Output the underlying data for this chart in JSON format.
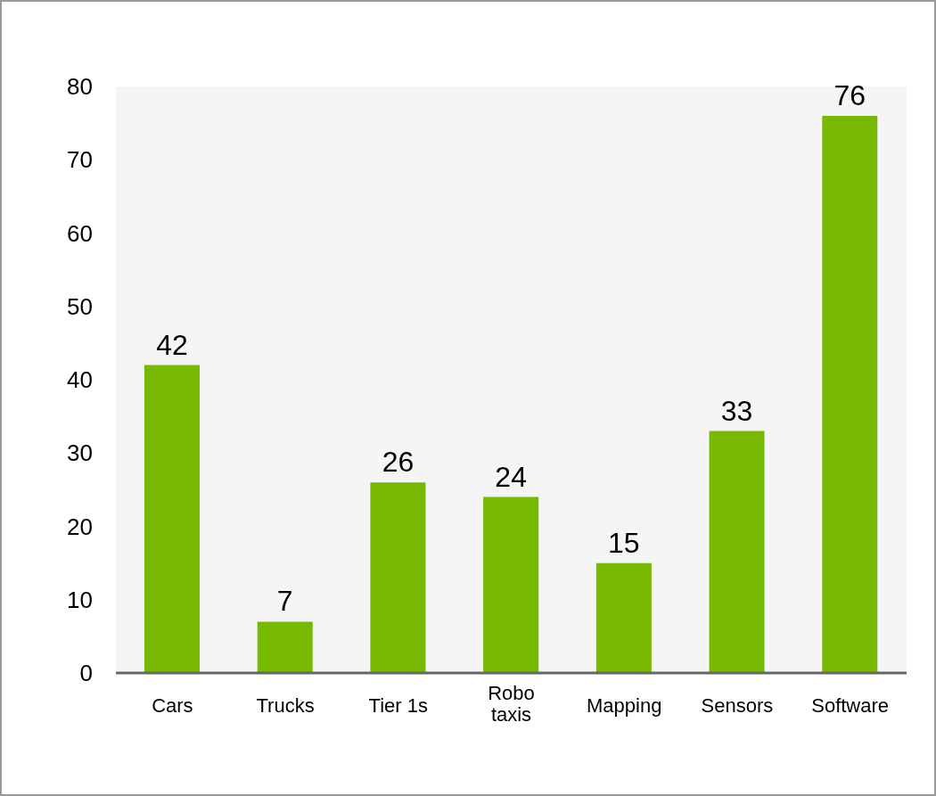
{
  "chart_data": {
    "type": "bar",
    "categories": [
      "Cars",
      "Trucks",
      "Tier 1s",
      "Robo taxis",
      "Mapping",
      "Sensors",
      "Software"
    ],
    "values": [
      42,
      7,
      26,
      24,
      15,
      33,
      76
    ],
    "color": "#76b900",
    "ylim": [
      0,
      80
    ],
    "yticks": [
      0,
      10,
      20,
      30,
      40,
      50,
      60,
      70,
      80
    ],
    "data_labels": true,
    "grid": false
  }
}
